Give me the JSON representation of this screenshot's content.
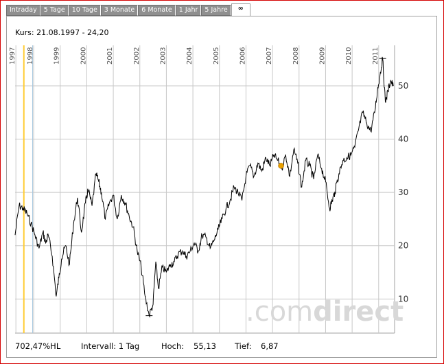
{
  "tabs": [
    {
      "label": "Intraday"
    },
    {
      "label": "5 Tage"
    },
    {
      "label": "10 Tage"
    },
    {
      "label": "3 Monate"
    },
    {
      "label": "6 Monate"
    },
    {
      "label": "1 Jahr"
    },
    {
      "label": "5 Jahre"
    },
    {
      "label": "∞"
    }
  ],
  "header": {
    "kurs": "Kurs: 21.08.1997 - 24,20"
  },
  "footer": {
    "change": "702,47%HL",
    "interval": "Intervall: 1 Tag",
    "high_label": "Hoch:",
    "high_value": "55,13",
    "low_label": "Tief:",
    "low_value": "6,87"
  },
  "watermark": {
    "text_a": ".com",
    "text_b": "direct"
  },
  "colors": {
    "line": "#000000",
    "grid": "#c8c8c8",
    "cursor": "#ffcc33",
    "cursor2": "#a8c8e0",
    "marker": "#e8a000",
    "watermark": "#d8d8d8"
  },
  "chart_data": {
    "type": "line",
    "title": "",
    "xlabel": "",
    "ylabel": "",
    "years": [
      "1997",
      "1998",
      "1999",
      "2000",
      "2001",
      "2002",
      "2003",
      "2004",
      "2005",
      "2006",
      "2007",
      "2008",
      "2009",
      "2010",
      "2011"
    ],
    "yticks": [
      10,
      20,
      30,
      40,
      50
    ],
    "ylim": [
      3.6,
      57.6
    ],
    "xlim": [
      1997.3,
      2011.6
    ],
    "grid": true,
    "cursor_date": "21.08.1997",
    "high": 55.13,
    "low": 6.87,
    "series": [
      {
        "x": [
          1997.3,
          1997.45,
          1997.6,
          1997.75,
          1997.9,
          1998.05,
          1998.2,
          1998.35,
          1998.45,
          1998.55,
          1998.7,
          1998.85,
          1998.95,
          1999.05,
          1999.2,
          1999.35,
          1999.5,
          1999.65,
          1999.8,
          1999.95,
          2000.05,
          2000.2,
          2000.35,
          2000.45,
          2000.55,
          2000.7,
          2000.85,
          2001.0,
          2001.15,
          2001.3,
          2001.45,
          2001.6,
          2001.75,
          2001.9,
          2002.05,
          2002.2,
          2002.35,
          2002.5,
          2002.6,
          2002.7,
          2002.85,
          2003.0,
          2003.15,
          2003.3,
          2003.45,
          2003.6,
          2003.75,
          2003.9,
          2004.05,
          2004.2,
          2004.35,
          2004.5,
          2004.65,
          2004.8,
          2004.95,
          2005.1,
          2005.25,
          2005.4,
          2005.55,
          2005.7,
          2005.85,
          2006.0,
          2006.15,
          2006.3,
          2006.45,
          2006.6,
          2006.75,
          2006.9,
          2007.05,
          2007.2,
          2007.35,
          2007.5,
          2007.65,
          2007.8,
          2007.95,
          2008.1,
          2008.25,
          2008.4,
          2008.55,
          2008.7,
          2008.85,
          2009.0,
          2009.15,
          2009.25,
          2009.35,
          2009.5,
          2009.65,
          2009.8,
          2009.95,
          2010.1,
          2010.25,
          2010.4,
          2010.55,
          2010.7,
          2010.85,
          2010.95,
          2011.05,
          2011.15,
          2011.25,
          2011.35,
          2011.45,
          2011.55
        ],
        "y": [
          22.0,
          27.5,
          27.0,
          26.0,
          24.2,
          22.0,
          19.5,
          22.5,
          20.5,
          22.0,
          18.0,
          10.5,
          14.0,
          17.5,
          20.0,
          16.5,
          24.0,
          29.0,
          22.5,
          28.0,
          30.5,
          27.5,
          33.5,
          32.0,
          30.0,
          25.0,
          28.0,
          29.5,
          25.0,
          29.5,
          28.0,
          25.5,
          23.5,
          19.0,
          16.0,
          10.5,
          6.9,
          9.0,
          17.0,
          12.0,
          16.0,
          15.0,
          16.5,
          17.0,
          18.5,
          19.0,
          18.0,
          19.0,
          20.5,
          19.0,
          22.0,
          21.5,
          19.5,
          21.0,
          23.0,
          25.0,
          27.0,
          28.5,
          31.0,
          30.0,
          28.5,
          33.0,
          35.0,
          33.0,
          35.5,
          34.0,
          36.5,
          35.0,
          37.0,
          36.0,
          34.5,
          37.0,
          33.0,
          38.0,
          35.5,
          31.0,
          36.0,
          35.0,
          32.5,
          37.0,
          34.5,
          32.0,
          27.0,
          28.5,
          30.0,
          33.5,
          36.0,
          36.5,
          37.0,
          38.5,
          42.0,
          45.0,
          43.0,
          41.5,
          45.0,
          49.0,
          52.0,
          55.1,
          47.0,
          49.0,
          51.0,
          50.0
        ]
      }
    ]
  }
}
